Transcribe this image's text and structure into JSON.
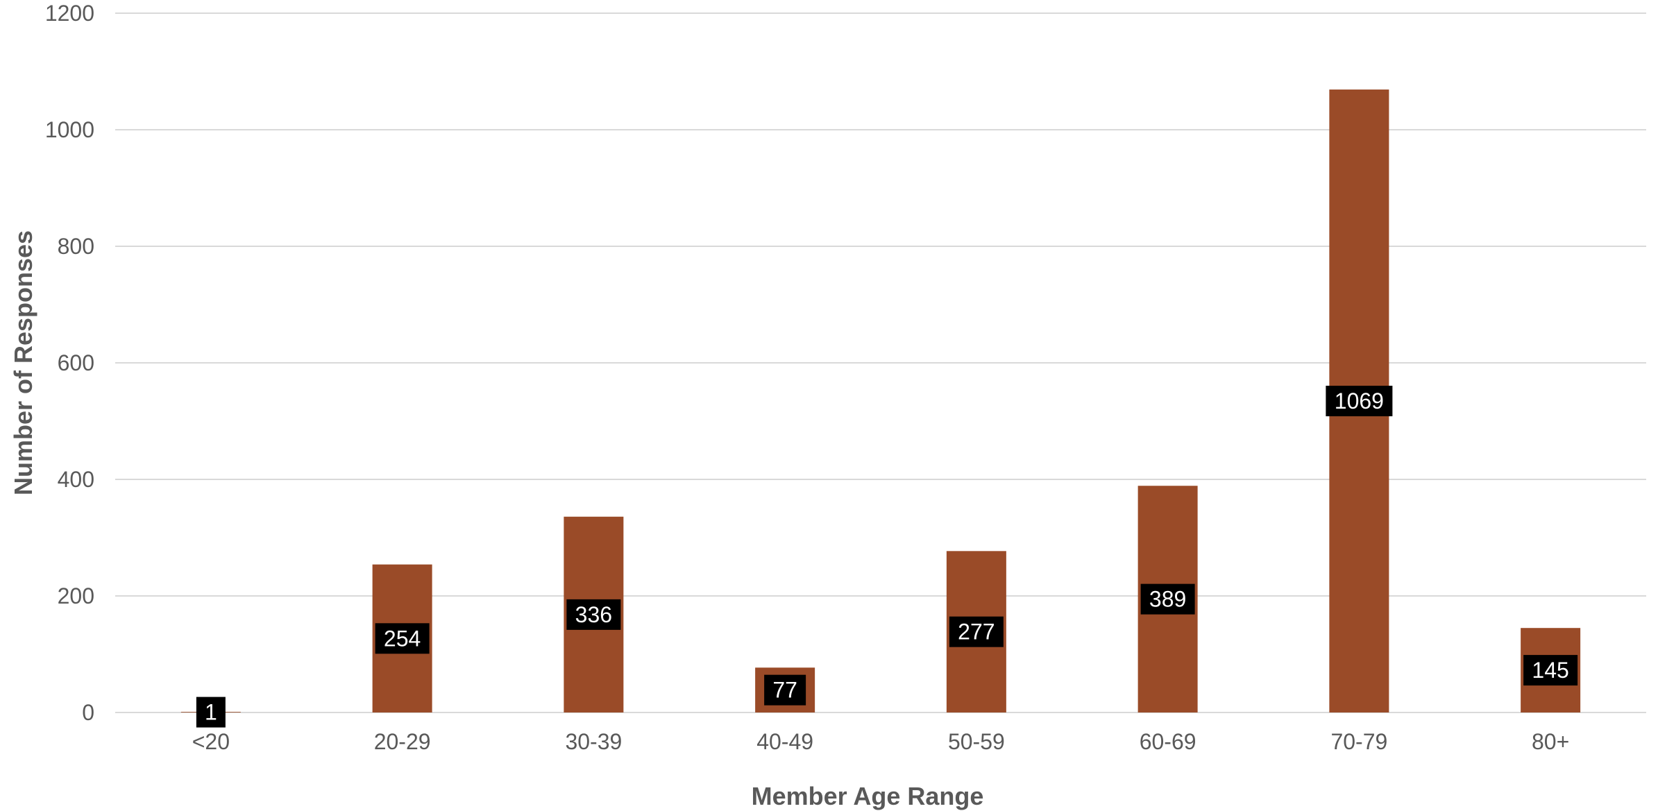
{
  "chart_data": {
    "type": "bar",
    "categories": [
      "<20",
      "20-29",
      "30-39",
      "40-49",
      "50-59",
      "60-69",
      "70-79",
      "80+"
    ],
    "values": [
      1,
      254,
      336,
      77,
      277,
      389,
      1069,
      145
    ],
    "data_labels": [
      "1",
      "254",
      "336",
      "77",
      "277",
      "389",
      "1069",
      "145"
    ],
    "xlabel": "Member Age Range",
    "ylabel": "Number of Responses",
    "ylim": [
      0,
      1200
    ],
    "yticks": [
      0,
      200,
      400,
      600,
      800,
      1000,
      1200
    ],
    "ytick_labels": [
      "0",
      "200",
      "400",
      "600",
      "800",
      "1000",
      "1200"
    ],
    "grid": true,
    "legend": "none",
    "colors": {
      "bar": "#9a4b28",
      "label_background": "#000000",
      "label_text": "#ffffff",
      "gridline": "#d9d9d9",
      "axis_text": "#595959"
    }
  }
}
